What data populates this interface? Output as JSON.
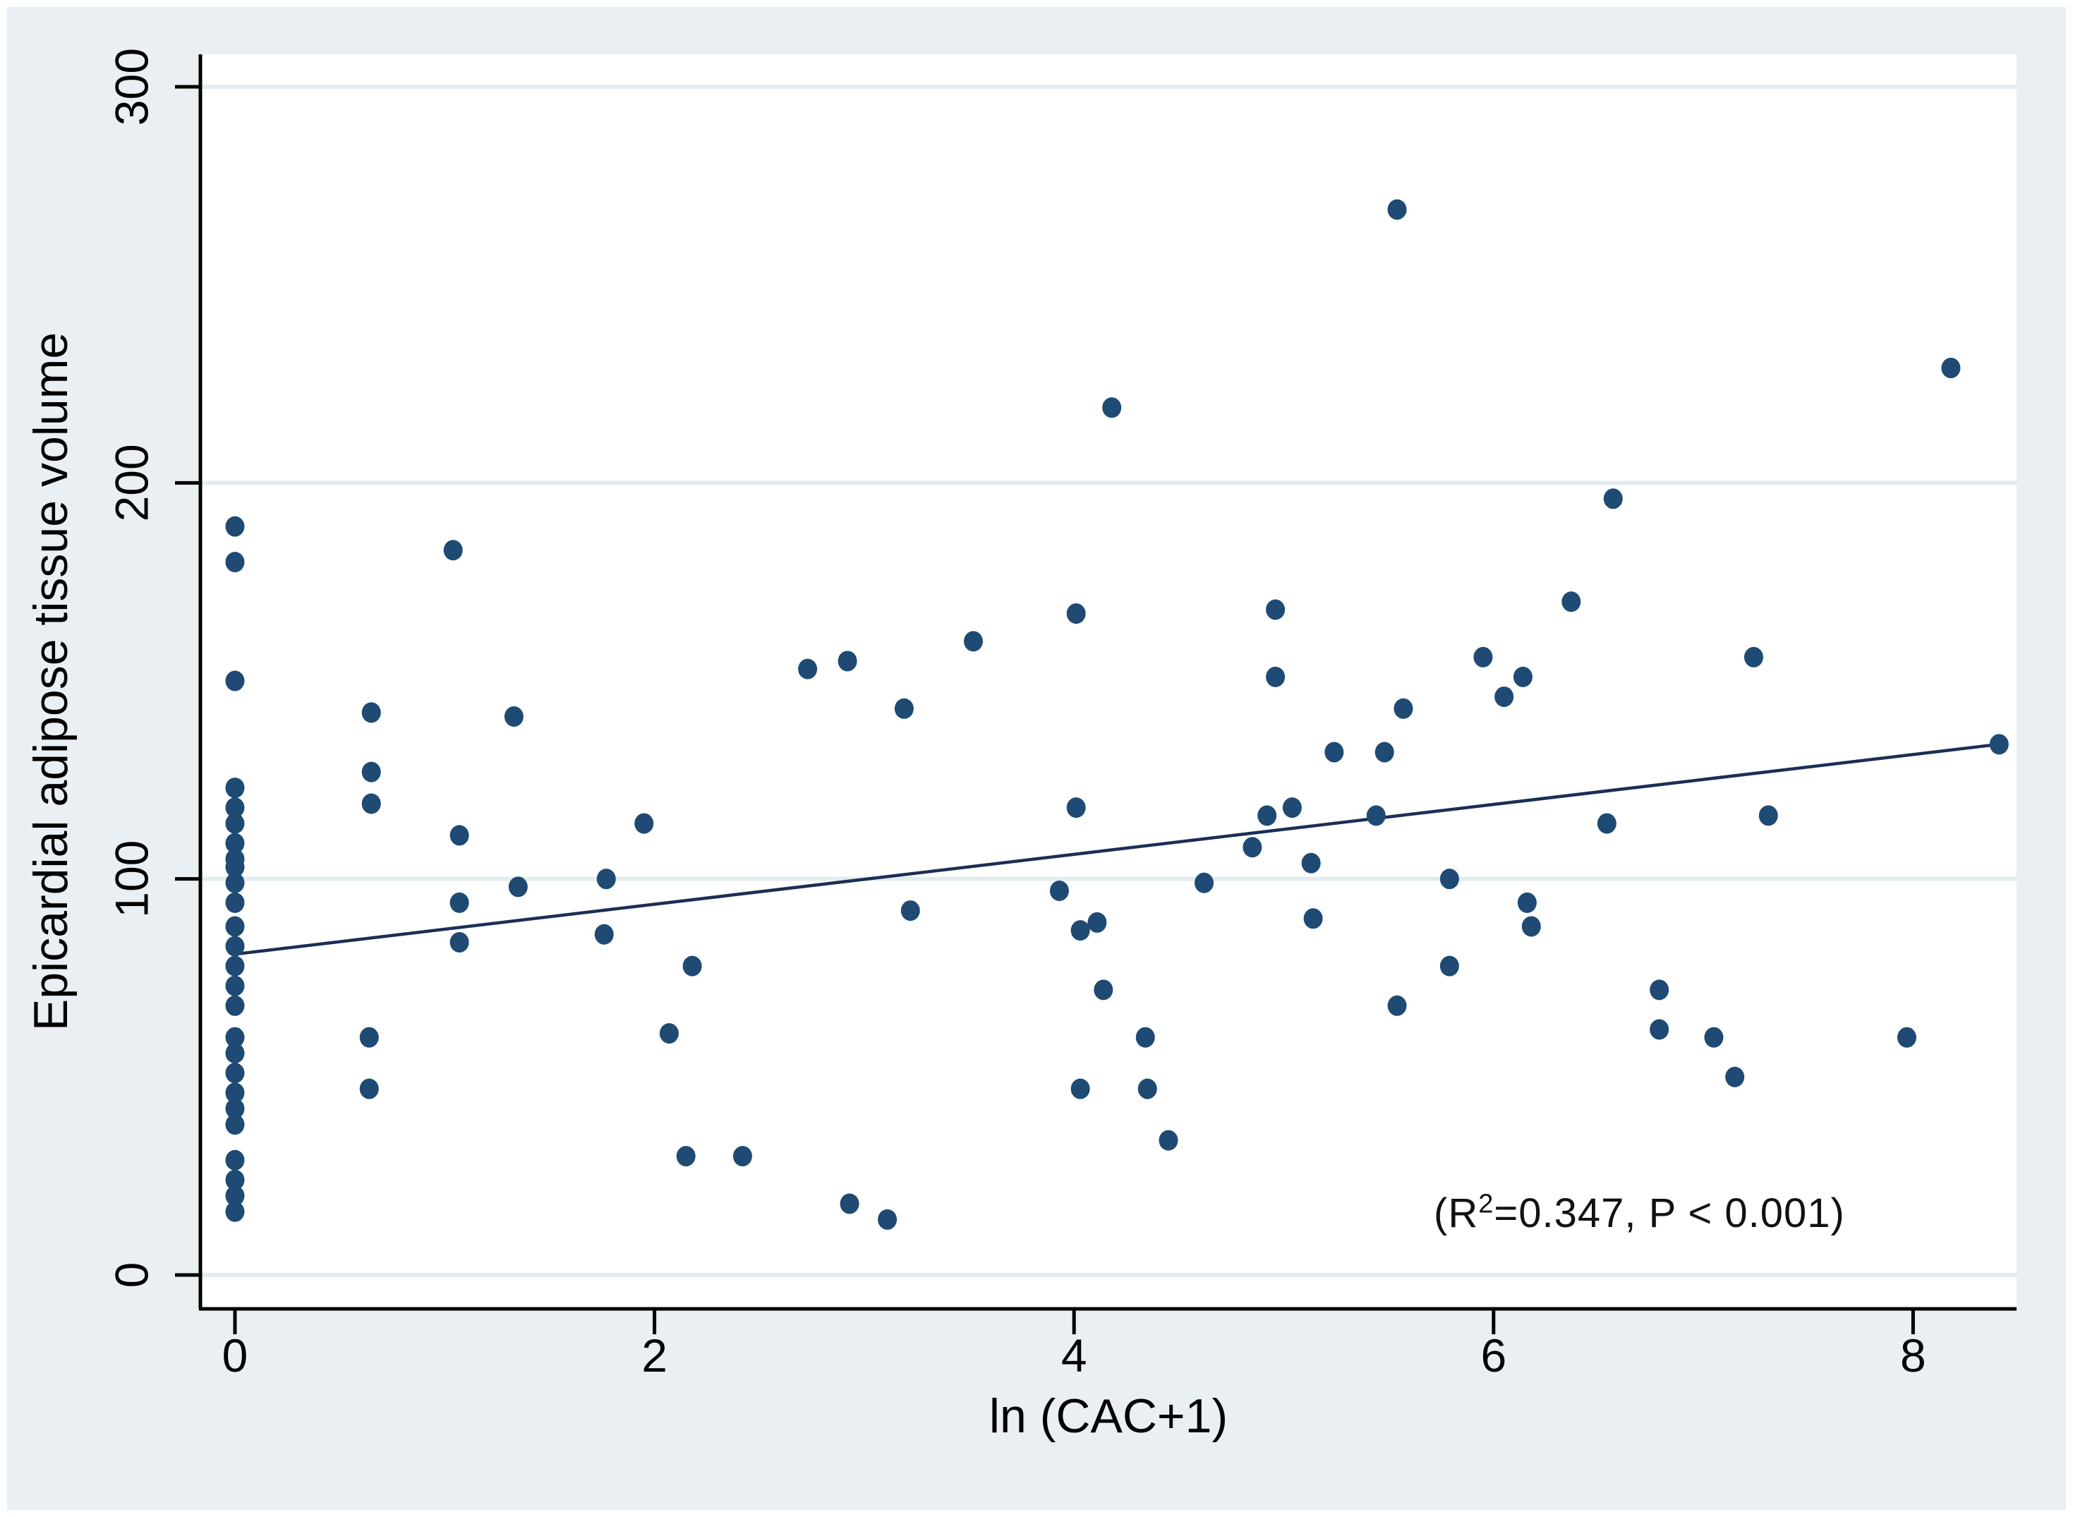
{
  "chart_data": {
    "type": "scatter",
    "title": "",
    "xlabel": "ln (CAC+1)",
    "ylabel": "Epicardial adipose tissue volume",
    "xlim": [
      -0.17,
      8.6
    ],
    "ylim": [
      -9,
      310
    ],
    "x_ticks": [
      0,
      2,
      4,
      6,
      8
    ],
    "y_ticks": [
      0,
      100,
      200,
      300
    ],
    "grid": "horizontal-only",
    "legend_position": "none",
    "annotation": {
      "prefix": "(R",
      "sup": "2",
      "suffix": "=0.347, P < 0.001)"
    },
    "trendline": {
      "x1": 0.0,
      "y1": 81,
      "x2": 8.41,
      "y2": 134
    },
    "points": [
      [
        0,
        189
      ],
      [
        0,
        180
      ],
      [
        0,
        150
      ],
      [
        0,
        123
      ],
      [
        0,
        118
      ],
      [
        0,
        114
      ],
      [
        0,
        109
      ],
      [
        0,
        105
      ],
      [
        0,
        103
      ],
      [
        0,
        99
      ],
      [
        0,
        94
      ],
      [
        0,
        88
      ],
      [
        0,
        83
      ],
      [
        0,
        78
      ],
      [
        0,
        73
      ],
      [
        0,
        68
      ],
      [
        0,
        60
      ],
      [
        0,
        56
      ],
      [
        0,
        51
      ],
      [
        0,
        46
      ],
      [
        0,
        42
      ],
      [
        0,
        38
      ],
      [
        0,
        29
      ],
      [
        0,
        24
      ],
      [
        0,
        20
      ],
      [
        0,
        16
      ],
      [
        0.65,
        142
      ],
      [
        0.65,
        127
      ],
      [
        0.65,
        119
      ],
      [
        0.64,
        60
      ],
      [
        0.64,
        47
      ],
      [
        1.04,
        183
      ],
      [
        1.07,
        111
      ],
      [
        1.07,
        94
      ],
      [
        1.07,
        84
      ],
      [
        1.33,
        141
      ],
      [
        1.35,
        98
      ],
      [
        1.76,
        86
      ],
      [
        1.77,
        100
      ],
      [
        1.95,
        114
      ],
      [
        2.07,
        61
      ],
      [
        2.18,
        78
      ],
      [
        2.15,
        30
      ],
      [
        2.42,
        30
      ],
      [
        2.73,
        153
      ],
      [
        2.92,
        155
      ],
      [
        2.93,
        18
      ],
      [
        3.11,
        14
      ],
      [
        3.19,
        143
      ],
      [
        3.22,
        92
      ],
      [
        3.52,
        160
      ],
      [
        3.93,
        97
      ],
      [
        4.01,
        167
      ],
      [
        4.01,
        118
      ],
      [
        4.03,
        87
      ],
      [
        4.11,
        89
      ],
      [
        4.14,
        72
      ],
      [
        4.03,
        47
      ],
      [
        4.35,
        47
      ],
      [
        4.34,
        60
      ],
      [
        4.45,
        34
      ],
      [
        4.18,
        219
      ],
      [
        4.62,
        99
      ],
      [
        4.85,
        108
      ],
      [
        4.92,
        116
      ],
      [
        4.96,
        168
      ],
      [
        4.96,
        151
      ],
      [
        5.04,
        118
      ],
      [
        5.13,
        104
      ],
      [
        5.14,
        90
      ],
      [
        5.24,
        132
      ],
      [
        5.44,
        116
      ],
      [
        5.48,
        132
      ],
      [
        5.54,
        68
      ],
      [
        5.54,
        269
      ],
      [
        5.57,
        143
      ],
      [
        5.79,
        100
      ],
      [
        5.79,
        78
      ],
      [
        5.95,
        156
      ],
      [
        6.05,
        146
      ],
      [
        6.14,
        151
      ],
      [
        6.16,
        94
      ],
      [
        6.18,
        88
      ],
      [
        6.37,
        170
      ],
      [
        6.54,
        114
      ],
      [
        6.57,
        196
      ],
      [
        6.79,
        72
      ],
      [
        6.79,
        62
      ],
      [
        7.05,
        60
      ],
      [
        7.15,
        50
      ],
      [
        7.24,
        156
      ],
      [
        7.31,
        116
      ],
      [
        7.97,
        60
      ],
      [
        8.18,
        229
      ],
      [
        8.41,
        134
      ]
    ],
    "colors": {
      "background": "#e9eff2",
      "plot_background": "#ffffff",
      "gridline": "#e3ecef",
      "point": "#1e4a73",
      "trendline": "#1c2e55",
      "axis": "#000000",
      "text": "#000000"
    }
  }
}
